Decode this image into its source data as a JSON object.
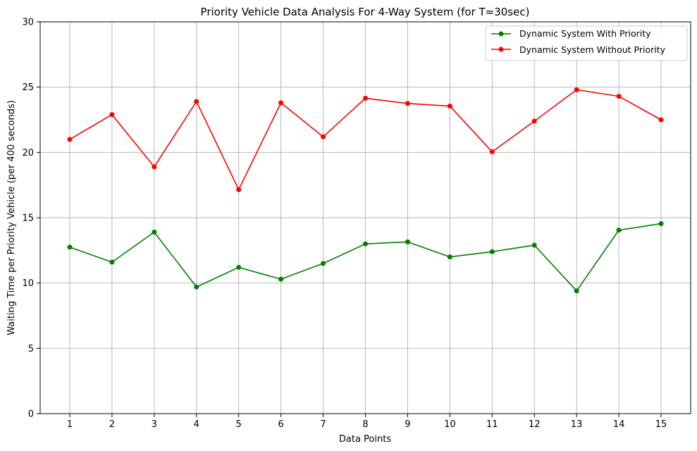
{
  "chart_data": {
    "type": "line",
    "title": "Priority Vehicle Data Analysis For 4-Way System (for T=30sec)",
    "xlabel": "Data Points",
    "ylabel": "Waiting Time per Priority Vehicle (per 400 seconds)",
    "x": [
      1,
      2,
      3,
      4,
      5,
      6,
      7,
      8,
      9,
      10,
      11,
      12,
      13,
      14,
      15
    ],
    "xticks": [
      "1",
      "2",
      "3",
      "4",
      "5",
      "6",
      "7",
      "8",
      "9",
      "10",
      "11",
      "12",
      "13",
      "14",
      "15"
    ],
    "xlim": [
      0.3,
      15.7
    ],
    "ylim": [
      0,
      30
    ],
    "yticks": [
      "0",
      "5",
      "10",
      "15",
      "20",
      "25",
      "30"
    ],
    "grid": true,
    "legend_position": "top-right",
    "series": [
      {
        "name": "Dynamic System With Priority",
        "color": "#008000",
        "marker": "circle",
        "values": [
          12.75,
          11.6,
          13.9,
          9.7,
          11.2,
          10.3,
          11.5,
          13.0,
          13.15,
          12.0,
          12.4,
          12.9,
          9.4,
          14.05,
          14.55
        ]
      },
      {
        "name": "Dynamic System Without Priority",
        "color": "#ff0000",
        "marker": "circle",
        "values": [
          21.0,
          22.9,
          18.9,
          23.9,
          17.15,
          23.8,
          21.2,
          24.15,
          23.75,
          23.55,
          20.05,
          22.4,
          24.8,
          24.3,
          22.5
        ]
      }
    ]
  }
}
